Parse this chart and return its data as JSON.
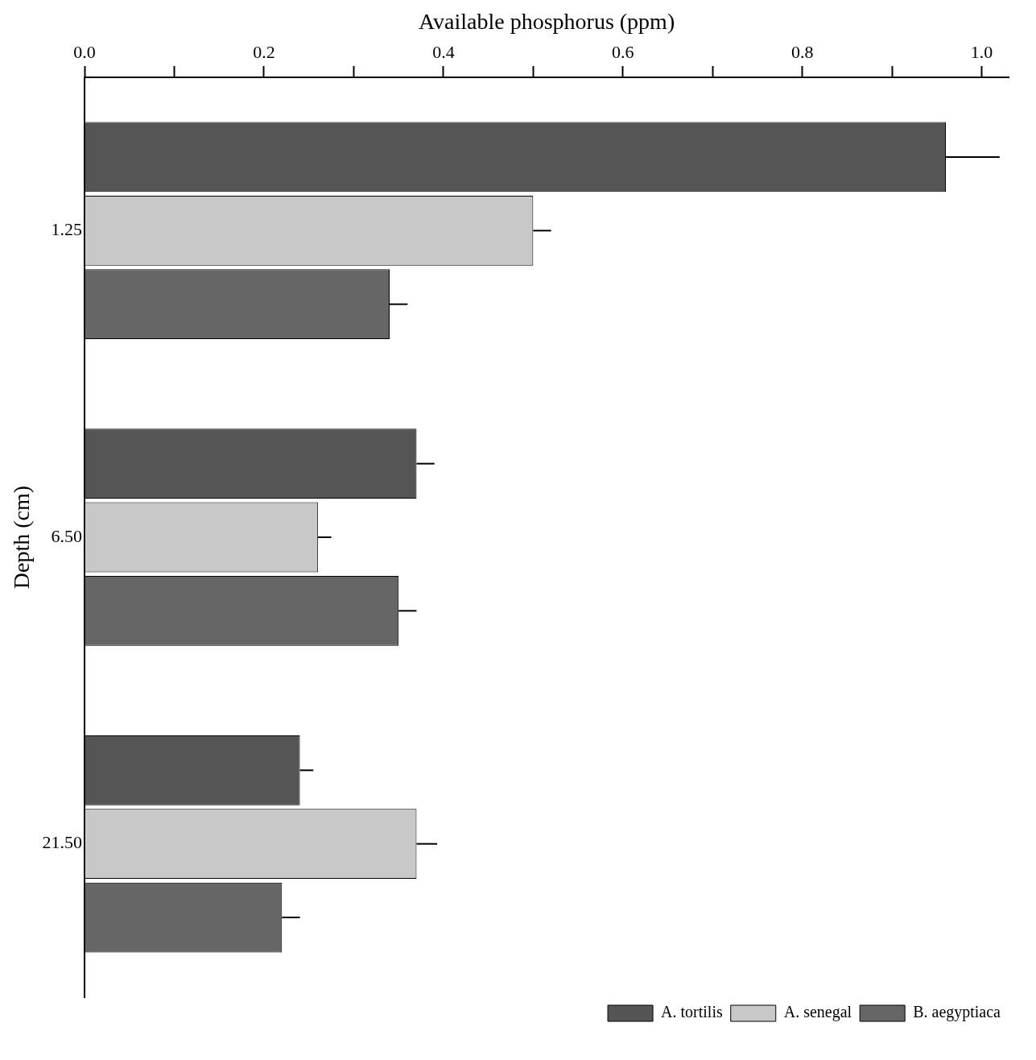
{
  "chart_data": {
    "type": "bar",
    "orientation": "horizontal",
    "xlabel": "Available phosphorus (ppm)",
    "ylabel": "Depth (cm)",
    "categories": [
      "1.25",
      "6.50",
      "21.50"
    ],
    "series": [
      {
        "name": "A. tortilis",
        "color": "#555555",
        "values": [
          0.96,
          0.37,
          0.24
        ],
        "errors": [
          [
            0.96,
            1.02
          ],
          [
            0.37,
            0.39
          ],
          [
            0.24,
            0.255
          ]
        ]
      },
      {
        "name": "A. senegal",
        "color": "#c8c8c8",
        "values": [
          0.5,
          0.26,
          0.37
        ],
        "errors": [
          [
            0.5,
            0.52
          ],
          [
            0.26,
            0.275
          ],
          [
            0.37,
            0.393
          ]
        ]
      },
      {
        "name": "B. aegyptiaca",
        "color": "#666666",
        "values": [
          0.34,
          0.35,
          0.22
        ],
        "errors": [
          [
            0.34,
            0.36
          ],
          [
            0.35,
            0.37
          ],
          [
            0.22,
            0.24
          ]
        ]
      }
    ],
    "xlim": [
      0,
      1.03
    ],
    "xticks": [
      {
        "value": 0,
        "label": "0.0"
      },
      {
        "value": 0.1,
        "label": null
      },
      {
        "value": 0.2,
        "label": "0.2"
      },
      {
        "value": 0.3,
        "label": null
      },
      {
        "value": 0.4,
        "label": "0.4"
      },
      {
        "value": 0.5,
        "label": null
      },
      {
        "value": 0.6,
        "label": "0.6"
      },
      {
        "value": 0.7,
        "label": null
      },
      {
        "value": 0.8,
        "label": "0.8"
      },
      {
        "value": 0.9,
        "label": null
      },
      {
        "value": 1.0,
        "label": "1.0"
      }
    ],
    "grid": false,
    "legend": "bottom right"
  }
}
